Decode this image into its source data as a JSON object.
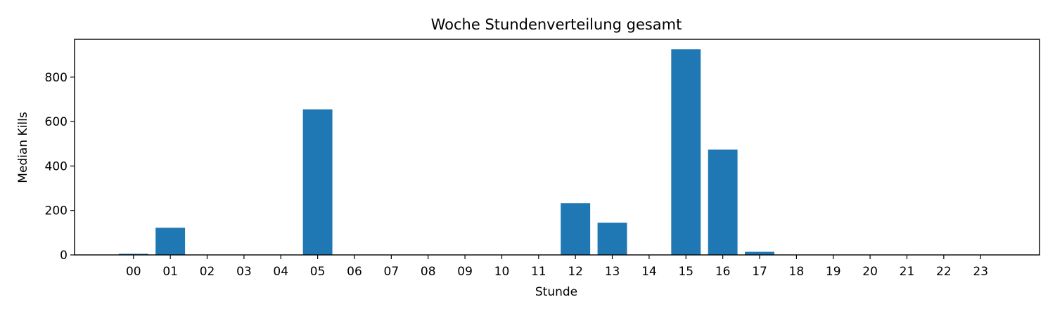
{
  "chart_data": {
    "type": "bar",
    "title": "Woche Stundenverteilung gesamt",
    "xlabel": "Stunde",
    "ylabel": "Median Kills",
    "categories": [
      "00",
      "01",
      "02",
      "03",
      "04",
      "05",
      "06",
      "07",
      "08",
      "09",
      "10",
      "11",
      "12",
      "13",
      "14",
      "15",
      "16",
      "17",
      "18",
      "19",
      "20",
      "21",
      "22",
      "23"
    ],
    "values": [
      5,
      122,
      0,
      0,
      0,
      655,
      0,
      0,
      0,
      0,
      0,
      0,
      233,
      145,
      0,
      925,
      474,
      14,
      0,
      0,
      0,
      0,
      0,
      0
    ],
    "ylim": [
      0,
      970
    ],
    "yticks": [
      0,
      200,
      400,
      600,
      800
    ],
    "bar_color": "#1f77b4",
    "grid": false,
    "legend": "none"
  }
}
